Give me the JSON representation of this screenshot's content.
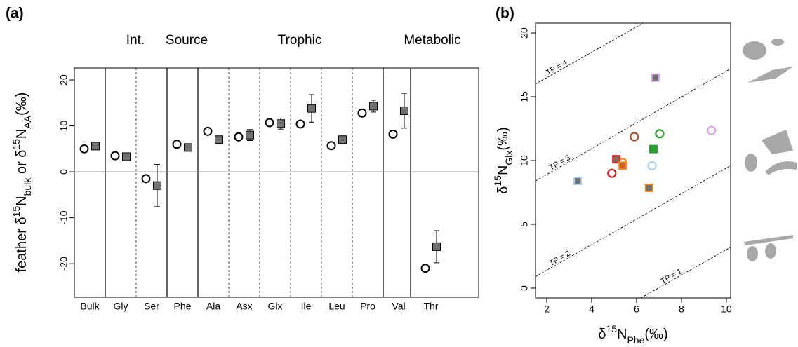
{
  "chart_data": [
    {
      "type": "dot-error",
      "panel_label": "(a)",
      "group_labels": [
        "Int.",
        "Source",
        "Trophic",
        "Metabolic"
      ],
      "y_label": [
        {
          "text": "feather δ"
        },
        {
          "text": "15",
          "shift": "super"
        },
        {
          "text": "N"
        },
        {
          "text": "bulk",
          "shift": "sub"
        },
        {
          "text": " or δ"
        },
        {
          "text": "15",
          "shift": "super"
        },
        {
          "text": "N"
        },
        {
          "text": "AA",
          "shift": "sub"
        },
        {
          "text": "(‰)"
        }
      ],
      "categories": [
        "Bulk",
        "Gly",
        "Ser",
        "Phe",
        "Ala",
        "Asx",
        "Glx",
        "Ile",
        "Leu",
        "Pro",
        "Val",
        "Thr"
      ],
      "series": [
        {
          "marker": "circle",
          "color": "#ffffff",
          "edge": "#000000",
          "values": [
            5.0,
            3.5,
            -1.5,
            6.0,
            8.8,
            7.6,
            10.7,
            10.4,
            5.7,
            12.8,
            8.2,
            -21.0
          ],
          "errors": [
            null,
            null,
            null,
            null,
            null,
            0.8,
            null,
            null,
            null,
            0.8,
            null,
            null
          ]
        },
        {
          "marker": "square",
          "color": "#707070",
          "edge": "#000000",
          "values": [
            5.6,
            3.3,
            -3.0,
            5.3,
            7.0,
            8.0,
            10.5,
            13.8,
            7.0,
            14.3,
            13.3,
            -16.3
          ],
          "errors": [
            null,
            null,
            4.6,
            null,
            null,
            1.2,
            1.2,
            3.0,
            null,
            1.3,
            3.8,
            3.5
          ]
        }
      ],
      "ylim": [
        -27.3,
        22.6
      ],
      "yticks": [
        -20,
        -10,
        0,
        10,
        20
      ]
    },
    {
      "type": "scatter",
      "panel_label": "(b)",
      "x_label": [
        {
          "text": "δ"
        },
        {
          "text": "15",
          "shift": "super"
        },
        {
          "text": "N"
        },
        {
          "text": "Phe",
          "shift": "sub"
        },
        {
          "text": "(‰)"
        }
      ],
      "y_label": [
        {
          "text": "δ"
        },
        {
          "text": "15",
          "shift": "super"
        },
        {
          "text": "N"
        },
        {
          "text": "Glx",
          "shift": "sub"
        },
        {
          "text": "(‰)"
        }
      ],
      "xlim": [
        1.5,
        10.19
      ],
      "xticks": [
        2,
        4,
        6,
        8,
        10
      ],
      "ylim": [
        -0.77,
        20.77
      ],
      "yticks": [
        0,
        5,
        10,
        15,
        20
      ],
      "reference_lines": [
        {
          "label": "TP = 1",
          "x": [
            6.19,
            10.19
          ],
          "y": [
            -0.77,
            3.2
          ]
        },
        {
          "label": "TP = 2",
          "x": [
            1.5,
            10.19
          ],
          "y": [
            0.9,
            9.6
          ]
        },
        {
          "label": "TP = 3",
          "x": [
            1.5,
            10.19
          ],
          "y": [
            8.4,
            17.2
          ]
        },
        {
          "label": "TP = 4",
          "x": [
            1.5,
            6.3
          ],
          "y": [
            16.0,
            20.77
          ]
        }
      ],
      "series": [
        {
          "marker": "circle",
          "x": [
            9.34,
            7.03,
            5.9,
            5.38,
            6.69,
            4.9
          ],
          "values": [
            12.36,
            12.1,
            11.87,
            9.84,
            9.6,
            9.0
          ],
          "colors": [
            "#d8a8e8",
            "#2ca02c",
            "#a0522d",
            "#f08c1e",
            "#a8d0f0",
            "#d62020"
          ]
        },
        {
          "marker": "square",
          "x": [
            3.38,
            6.84,
            6.75,
            5.1,
            5.38,
            6.56
          ],
          "values": [
            8.4,
            16.5,
            10.9,
            10.1,
            9.6,
            7.86
          ],
          "colors": [
            "#a8d0f0",
            "#d8a8e8",
            "#2ca02c",
            "#d62020",
            "#f08c1e",
            "#f08c1e"
          ],
          "fills": [
            "#707070",
            "#707070",
            "#2ca02c",
            "#8a6a5a",
            "#d06020",
            "#707070"
          ]
        }
      ]
    }
  ]
}
